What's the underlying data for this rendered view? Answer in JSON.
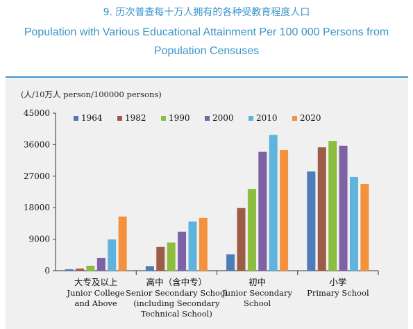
{
  "title": {
    "cn": "9. 历次普查每十万人拥有的各种受教育程度人口",
    "en": "Population with Various Educational Attainment Per 100 000 Persons from Population Censuses"
  },
  "chart_data": {
    "type": "bar",
    "unit_label": "(人/10万人 person/100000 persons)",
    "ylim": [
      0,
      45000
    ],
    "yticks": [
      "0",
      "9000",
      "18000",
      "27000",
      "36000",
      "45000"
    ],
    "grid": false,
    "legend_position": "top",
    "categories": [
      [
        "大专及以上",
        "Junior College",
        "and Above"
      ],
      [
        "高中（含中专）",
        "Senior Secondary School",
        "(including Secondary",
        "Technical School)"
      ],
      [
        "初中",
        "Junior Secondary",
        "School"
      ],
      [
        "小学",
        "Primary School"
      ]
    ],
    "series": [
      {
        "name": "1964",
        "color": "#4e7cb8",
        "values": [
          416,
          1319,
          4680,
          28330
        ]
      },
      {
        "name": "1982",
        "color": "#9c5c46",
        "values": [
          615,
          6779,
          17892,
          35237
        ]
      },
      {
        "name": "1990",
        "color": "#8cbd3e",
        "values": [
          1422,
          8039,
          23344,
          37057
        ]
      },
      {
        "name": "2000",
        "color": "#7d63a6",
        "values": [
          3611,
          11146,
          33961,
          35701
        ]
      },
      {
        "name": "2010",
        "color": "#5fb3dc",
        "values": [
          8930,
          14032,
          38788,
          26779
        ]
      },
      {
        "name": "2020",
        "color": "#f4913c",
        "values": [
          15467,
          15088,
          34507,
          24767
        ]
      }
    ]
  }
}
